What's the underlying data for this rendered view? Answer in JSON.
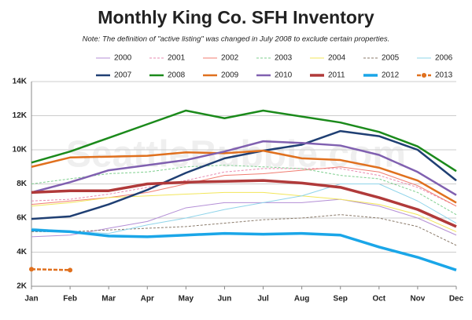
{
  "chart_data": {
    "type": "line",
    "title": "Monthly King Co. SFH Inventory",
    "subtitle": "Note: The definition of \"active listing\" was changed in July 2008 to exclude certain properties.",
    "watermark": "SeattleBubble.com",
    "categories": [
      "Jan",
      "Feb",
      "Mar",
      "Apr",
      "May",
      "Jun",
      "Jul",
      "Aug",
      "Sep",
      "Oct",
      "Nov",
      "Dec"
    ],
    "ylim": [
      2000,
      14000
    ],
    "yticks": [
      {
        "value": 2000,
        "label": "2K"
      },
      {
        "value": 4000,
        "label": "4K"
      },
      {
        "value": 6000,
        "label": "6K"
      },
      {
        "value": 8000,
        "label": "8K"
      },
      {
        "value": 10000,
        "label": "10K"
      },
      {
        "value": 12000,
        "label": "12K"
      },
      {
        "value": 14000,
        "label": "14K"
      }
    ],
    "grid": true,
    "series": [
      {
        "name": "2000",
        "color": "#b48fd6",
        "width": 1,
        "dash": "none",
        "values": [
          4900,
          5000,
          5400,
          5800,
          6600,
          6900,
          6900,
          6900,
          7100,
          6700,
          6000,
          5000
        ]
      },
      {
        "name": "2001",
        "color": "#e88ab0",
        "width": 1,
        "dash": "3,2",
        "values": [
          7000,
          7100,
          7400,
          7800,
          8200,
          8700,
          8900,
          8900,
          8900,
          8500,
          7800,
          6700
        ]
      },
      {
        "name": "2002",
        "color": "#f07c70",
        "width": 1,
        "dash": "none",
        "values": [
          6800,
          7000,
          7200,
          7500,
          8000,
          8500,
          8600,
          8800,
          9000,
          8700,
          7900,
          6700
        ]
      },
      {
        "name": "2003",
        "color": "#7fcf8f",
        "width": 1,
        "dash": "3,2",
        "values": [
          8000,
          8300,
          8600,
          8700,
          9000,
          9100,
          9000,
          8900,
          8500,
          8300,
          7500,
          6200
        ]
      },
      {
        "name": "2004",
        "color": "#f2e65a",
        "width": 1,
        "dash": "none",
        "values": [
          6700,
          6900,
          7200,
          7300,
          7400,
          7500,
          7500,
          7300,
          7100,
          6800,
          6200,
          5200
        ]
      },
      {
        "name": "2005",
        "color": "#8a7a6a",
        "width": 1,
        "dash": "3,2",
        "values": [
          5200,
          5200,
          5300,
          5400,
          5500,
          5700,
          5900,
          6000,
          6200,
          6000,
          5500,
          4400
        ]
      },
      {
        "name": "2006",
        "color": "#8fd4ea",
        "width": 1,
        "dash": "none",
        "values": [
          5400,
          5200,
          5100,
          5600,
          6000,
          6500,
          6900,
          7300,
          8000,
          8000,
          7000,
          5700
        ]
      },
      {
        "name": "2007",
        "color": "#1f3f73",
        "width": 2.5,
        "dash": "none",
        "values": [
          5950,
          6100,
          6800,
          7650,
          8650,
          9500,
          9950,
          10300,
          11100,
          10800,
          10000,
          8200
        ]
      },
      {
        "name": "2008",
        "color": "#1b8a1b",
        "width": 2.5,
        "dash": "none",
        "values": [
          9250,
          9900,
          10700,
          11500,
          12300,
          11850,
          12300,
          11950,
          11600,
          11050,
          10200,
          8750
        ]
      },
      {
        "name": "2009",
        "color": "#e0701e",
        "width": 2.5,
        "dash": "none",
        "values": [
          9000,
          9550,
          9600,
          9650,
          9850,
          9800,
          9950,
          9500,
          9400,
          8950,
          8200,
          6900
        ]
      },
      {
        "name": "2010",
        "color": "#8060b0",
        "width": 2.5,
        "dash": "none",
        "values": [
          7500,
          8100,
          8800,
          9100,
          9400,
          9900,
          10500,
          10400,
          10250,
          9700,
          8700,
          7350
        ]
      },
      {
        "name": "2011",
        "color": "#b03a3a",
        "width": 3.5,
        "dash": "none",
        "values": [
          7500,
          7600,
          7600,
          8000,
          8100,
          8150,
          8200,
          8050,
          7800,
          7200,
          6500,
          5500
        ]
      },
      {
        "name": "2012",
        "color": "#1aa6e8",
        "width": 3.5,
        "dash": "none",
        "values": [
          5300,
          5200,
          4950,
          4900,
          5000,
          5100,
          5050,
          5100,
          5000,
          4300,
          3700,
          2950
        ]
      },
      {
        "name": "2013",
        "color": "#e0701e",
        "width": 2.5,
        "dash": "5,2",
        "marker": true,
        "values": [
          3000,
          2950,
          null,
          null,
          null,
          null,
          null,
          null,
          null,
          null,
          null,
          null
        ]
      }
    ]
  }
}
